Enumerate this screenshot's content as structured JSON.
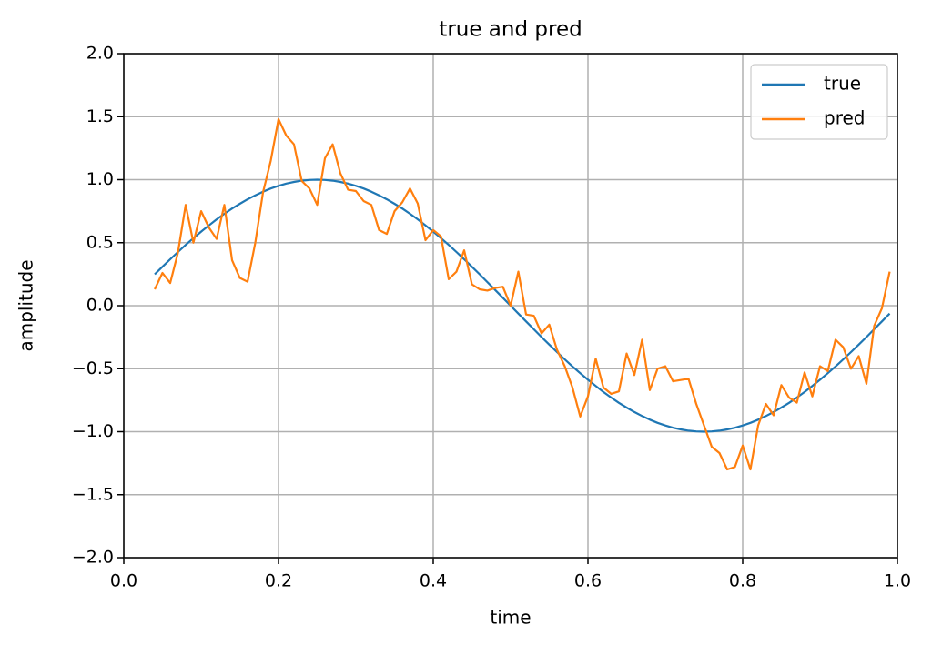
{
  "chart_data": {
    "type": "line",
    "title": "true and pred",
    "x_label": "time",
    "y_label": "amplitude",
    "x": [
      0.04,
      0.05,
      0.06,
      0.07,
      0.08,
      0.09,
      0.1,
      0.11,
      0.12,
      0.13,
      0.14,
      0.15,
      0.16,
      0.17,
      0.18,
      0.19,
      0.2,
      0.21,
      0.22,
      0.23,
      0.24,
      0.25,
      0.26,
      0.27,
      0.28,
      0.29,
      0.3,
      0.31,
      0.32,
      0.33,
      0.34,
      0.35,
      0.36,
      0.37,
      0.38,
      0.39,
      0.4,
      0.41,
      0.42,
      0.43,
      0.44,
      0.45,
      0.46,
      0.47,
      0.48,
      0.49,
      0.5,
      0.51,
      0.52,
      0.53,
      0.54,
      0.55,
      0.56,
      0.57,
      0.58,
      0.59,
      0.6,
      0.61,
      0.62,
      0.63,
      0.64,
      0.65,
      0.66,
      0.67,
      0.68,
      0.69,
      0.7,
      0.71,
      0.72,
      0.73,
      0.74,
      0.75,
      0.76,
      0.77,
      0.78,
      0.79,
      0.8,
      0.81,
      0.82,
      0.83,
      0.84,
      0.85,
      0.86,
      0.87,
      0.88,
      0.89,
      0.9,
      0.91,
      0.92,
      0.93,
      0.94,
      0.95,
      0.96,
      0.97,
      0.98,
      0.99
    ],
    "series": [
      {
        "name": "true",
        "color": "#1f77b4",
        "values": [
          0.249,
          0.309,
          0.368,
          0.426,
          0.482,
          0.536,
          0.588,
          0.637,
          0.685,
          0.729,
          0.771,
          0.809,
          0.844,
          0.876,
          0.905,
          0.93,
          0.951,
          0.969,
          0.982,
          0.992,
          0.998,
          1.0,
          0.998,
          0.992,
          0.982,
          0.969,
          0.951,
          0.93,
          0.905,
          0.876,
          0.844,
          0.809,
          0.771,
          0.729,
          0.685,
          0.637,
          0.588,
          0.536,
          0.482,
          0.426,
          0.368,
          0.309,
          0.249,
          0.187,
          0.125,
          0.063,
          0,
          -0.063,
          -0.125,
          -0.187,
          -0.249,
          -0.309,
          -0.368,
          -0.426,
          -0.482,
          -0.536,
          -0.588,
          -0.637,
          -0.685,
          -0.729,
          -0.771,
          -0.809,
          -0.844,
          -0.876,
          -0.905,
          -0.93,
          -0.951,
          -0.969,
          -0.982,
          -0.992,
          -0.998,
          -1.0,
          -0.998,
          -0.992,
          -0.982,
          -0.969,
          -0.951,
          -0.93,
          -0.905,
          -0.876,
          -0.844,
          -0.809,
          -0.771,
          -0.729,
          -0.685,
          -0.637,
          -0.588,
          -0.536,
          -0.482,
          -0.426,
          -0.368,
          -0.309,
          -0.249,
          -0.187,
          -0.125,
          -0.063
        ]
      },
      {
        "name": "pred",
        "color": "#ff7f0e",
        "values": [
          0.13,
          0.26,
          0.18,
          0.42,
          0.8,
          0.5,
          0.75,
          0.62,
          0.53,
          0.8,
          0.36,
          0.22,
          0.19,
          0.5,
          0.9,
          1.15,
          1.48,
          1.35,
          1.28,
          0.99,
          0.93,
          0.8,
          1.17,
          1.28,
          1.05,
          0.92,
          0.91,
          0.83,
          0.8,
          0.6,
          0.57,
          0.75,
          0.82,
          0.93,
          0.81,
          0.52,
          0.6,
          0.55,
          0.21,
          0.27,
          0.44,
          0.17,
          0.13,
          0.12,
          0.14,
          0.15,
          0.0,
          0.27,
          -0.07,
          -0.08,
          -0.22,
          -0.15,
          -0.35,
          -0.48,
          -0.65,
          -0.88,
          -0.72,
          -0.42,
          -0.65,
          -0.7,
          -0.68,
          -0.38,
          -0.55,
          -0.27,
          -0.67,
          -0.5,
          -0.48,
          -0.6,
          -0.59,
          -0.58,
          -0.78,
          -0.95,
          -1.12,
          -1.17,
          -1.3,
          -1.28,
          -1.11,
          -1.3,
          -0.95,
          -0.78,
          -0.87,
          -0.63,
          -0.73,
          -0.77,
          -0.53,
          -0.72,
          -0.48,
          -0.52,
          -0.27,
          -0.33,
          -0.5,
          -0.4,
          -0.62,
          -0.16,
          -0.02,
          0.27
        ]
      }
    ],
    "xlim": [
      0,
      1
    ],
    "ylim": [
      -2,
      2
    ],
    "xticks": [
      {
        "value": 0,
        "label": "0.0"
      },
      {
        "value": 0.2,
        "label": "0.2"
      },
      {
        "value": 0.4,
        "label": "0.4"
      },
      {
        "value": 0.6,
        "label": "0.6"
      },
      {
        "value": 0.8,
        "label": "0.8"
      },
      {
        "value": 1,
        "label": "1.0"
      }
    ],
    "yticks": [
      {
        "value": -2,
        "label": "−2.0"
      },
      {
        "value": -1.5,
        "label": "−1.5"
      },
      {
        "value": -1,
        "label": "−1.0"
      },
      {
        "value": -0.5,
        "label": "−0.5"
      },
      {
        "value": 0,
        "label": "0.0"
      },
      {
        "value": 0.5,
        "label": "0.5"
      },
      {
        "value": 1,
        "label": "1.0"
      },
      {
        "value": 1.5,
        "label": "1.5"
      },
      {
        "value": 2,
        "label": "2.0"
      }
    ],
    "grid": true,
    "legend": "upper right"
  }
}
